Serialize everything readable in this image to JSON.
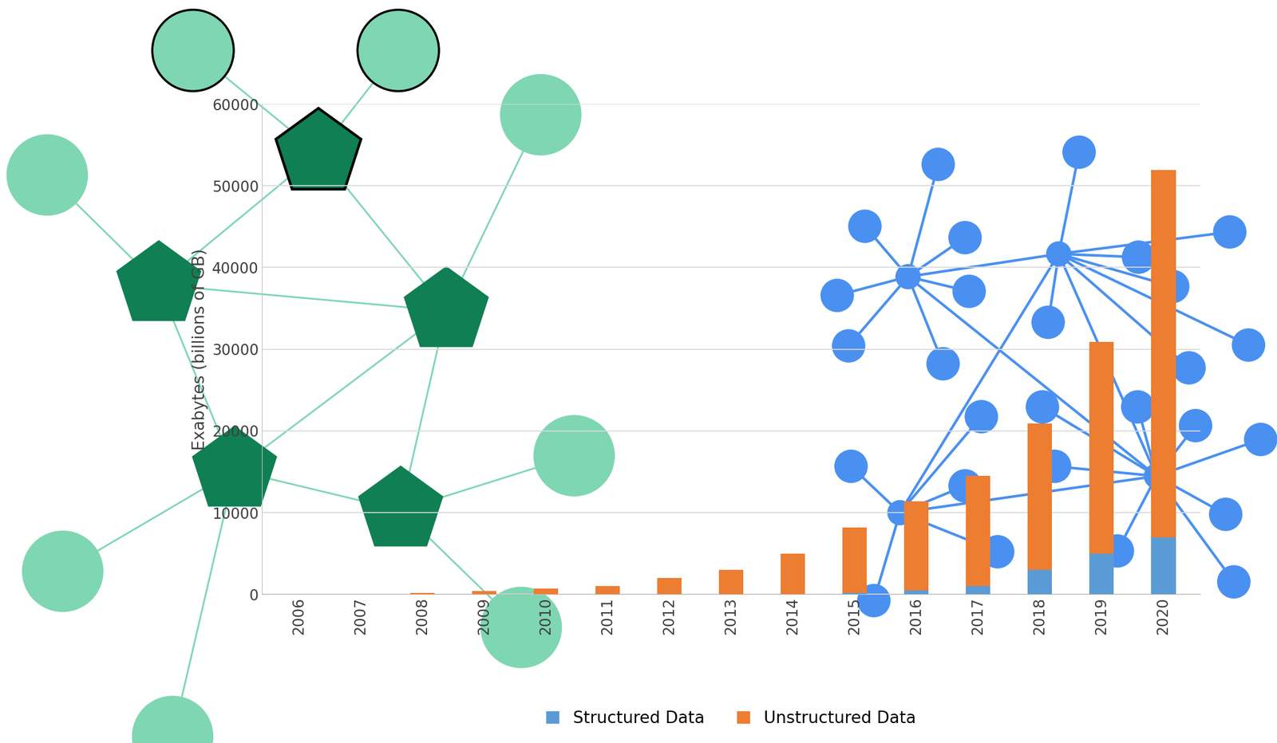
{
  "chart_data": {
    "type": "bar",
    "stacked": true,
    "categories": [
      "2006",
      "2007",
      "2008",
      "2009",
      "2010",
      "2011",
      "2012",
      "2013",
      "2014",
      "2015",
      "2016",
      "2017",
      "2018",
      "2019",
      "2020"
    ],
    "series": [
      {
        "name": "Structured Data",
        "color": "#5B9BD5",
        "values": [
          0,
          0,
          0,
          0,
          0,
          0,
          0,
          0,
          0,
          200,
          500,
          1000,
          3000,
          5000,
          7000
        ]
      },
      {
        "name": "Unstructured Data",
        "color": "#ED7D31",
        "values": [
          0,
          0,
          150,
          400,
          700,
          1000,
          2000,
          3000,
          5000,
          8000,
          10900,
          13500,
          17900,
          25900,
          44900
        ]
      }
    ],
    "y_label": "Exabytes (billions of GB)",
    "ylim": [
      0,
      60000
    ],
    "yticks": [
      0,
      10000,
      20000,
      30000,
      40000,
      50000,
      60000
    ],
    "grid": true,
    "legend": "lower center"
  }
}
